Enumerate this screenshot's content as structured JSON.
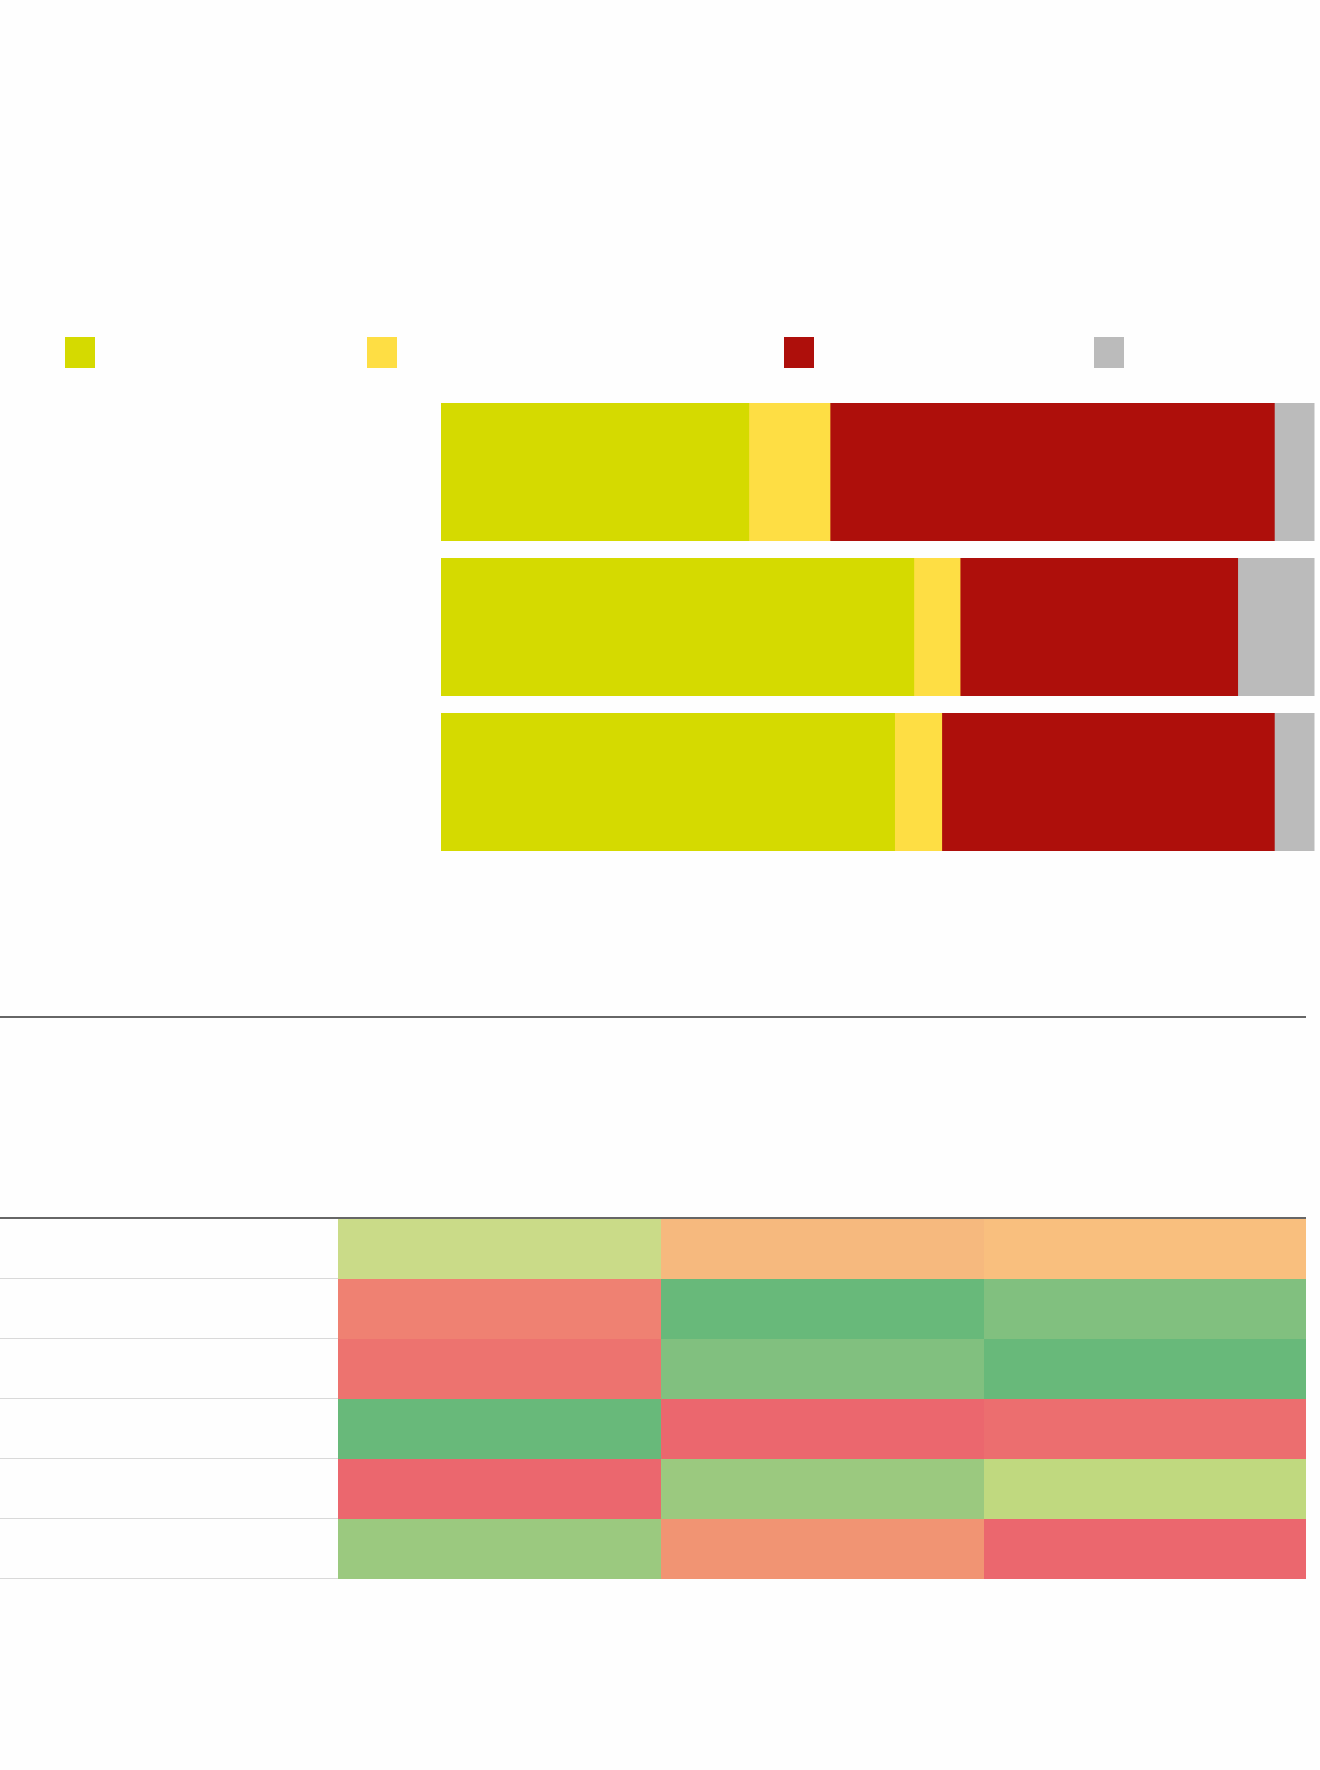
{
  "chart_data": [
    {
      "type": "bar",
      "orientation": "horizontal",
      "stacked": "percent",
      "legend": "top",
      "grid": false,
      "categories": [
        "",
        "",
        ""
      ],
      "series": [
        {
          "color": "#d5da00",
          "values": [
            35.3,
            54.2,
            52.0
          ]
        },
        {
          "color": "#fede44",
          "values": [
            9.3,
            5.3,
            5.4
          ]
        },
        {
          "color": "#ae0f0b",
          "values": [
            50.9,
            31.8,
            38.1
          ]
        },
        {
          "color": "#bbbbbb",
          "values": [
            4.5,
            8.7,
            4.5
          ]
        }
      ],
      "xlim": [
        0,
        100
      ]
    },
    {
      "type": "heatmap",
      "rows": [
        "",
        "",
        "",
        "",
        "",
        ""
      ],
      "columns": [
        "",
        "",
        ""
      ],
      "cell_colors": [
        [
          "#cadb88",
          "#f6b97e",
          "#f9bf7e"
        ],
        [
          "#ef8172",
          "#68b97a",
          "#81c07f"
        ],
        [
          "#ed736f",
          "#81c07f",
          "#68b97a"
        ],
        [
          "#68b97a",
          "#eb676e",
          "#ec6e6f"
        ],
        [
          "#eb676e",
          "#9bc97f",
          "#c0d97f"
        ],
        [
          "#9bc97f",
          "#f19473",
          "#eb676e"
        ]
      ]
    }
  ]
}
